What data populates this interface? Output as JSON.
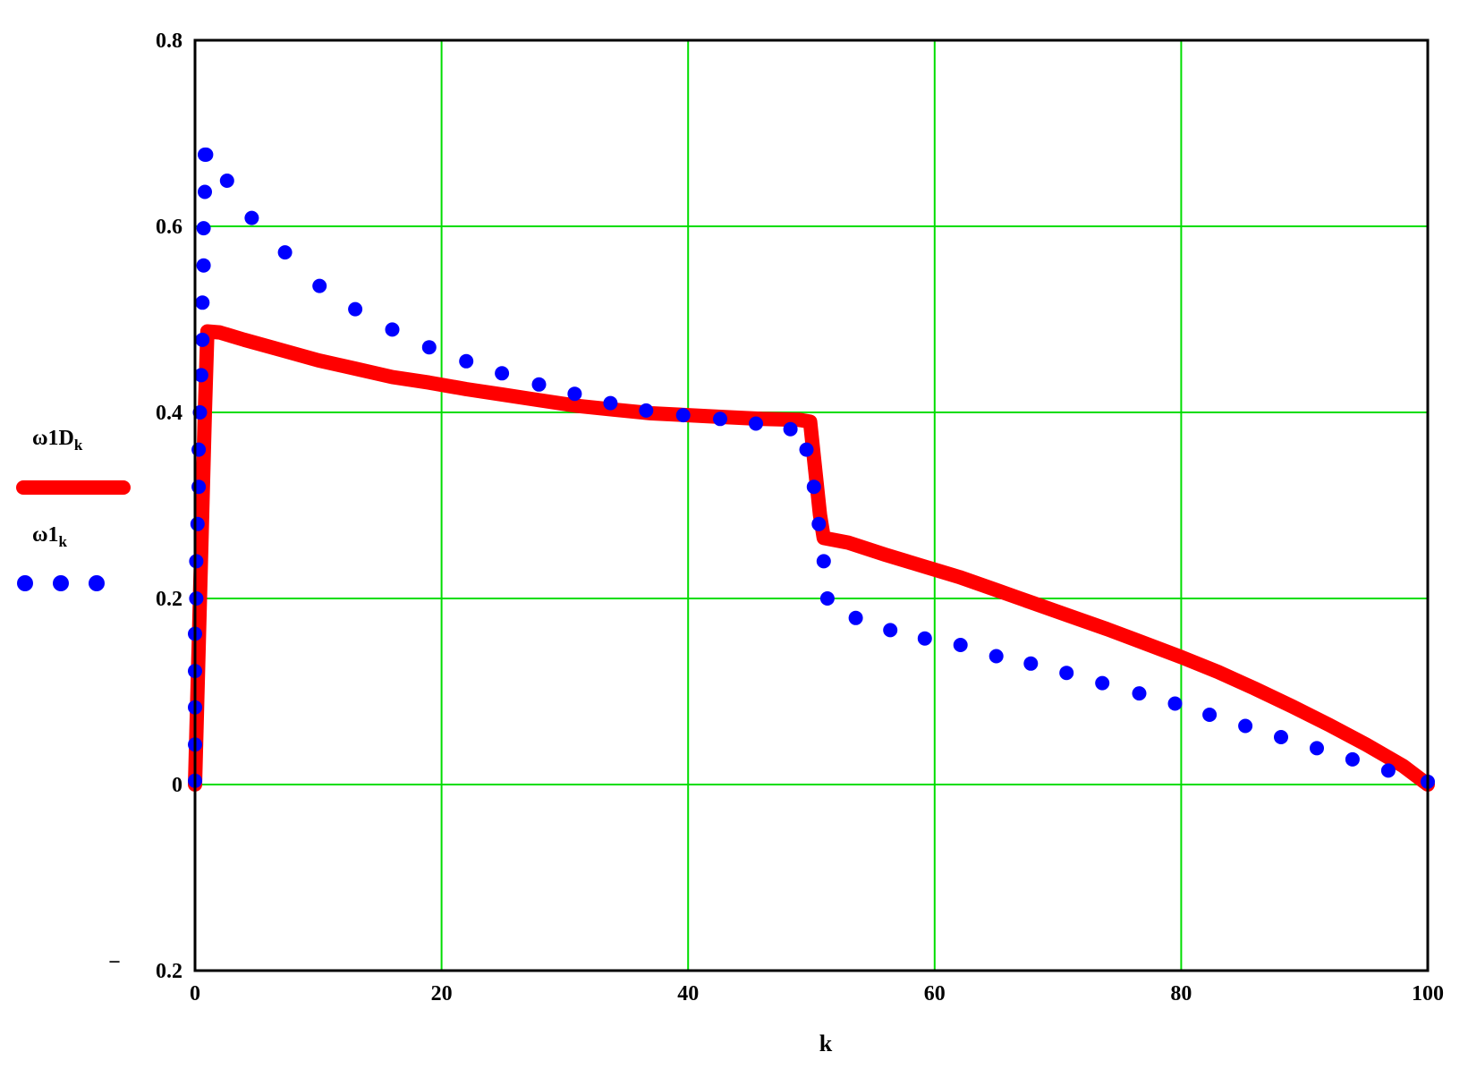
{
  "colors": {
    "grid": "#00dd00",
    "axis": "#000000",
    "series_line": "#ff0000",
    "series_dots": "#0000ff"
  },
  "chart_data": {
    "type": "line",
    "xlabel": "k",
    "xlim": [
      0,
      100
    ],
    "ylim": [
      -0.2,
      0.8
    ],
    "xticks": [
      0,
      20,
      40,
      60,
      80,
      100
    ],
    "yticks": [
      -0.2,
      0,
      0.2,
      0.4,
      0.6,
      0.8
    ],
    "xtick_labels": [
      "0",
      "20",
      "40",
      "60",
      "80",
      "100"
    ],
    "ytick_labels": [
      "0.2",
      "0",
      "0.2",
      "0.4",
      "0.6",
      "0.8"
    ],
    "ytick_minus_mark": "−",
    "grid": true,
    "legend_position": "left",
    "series": [
      {
        "name": "ω1D",
        "name_subscript": "k",
        "style": "solid-thick",
        "color": "#ff0000",
        "x": [
          0,
          0.4,
          0.8,
          1.0,
          2,
          4,
          7,
          10,
          13,
          16,
          19,
          22,
          25,
          28,
          31,
          34,
          37,
          40,
          43,
          46,
          49,
          49.9,
          50.3,
          50.7,
          51,
          53,
          56,
          59,
          62,
          65,
          68,
          71,
          74,
          77,
          80,
          83,
          86,
          89,
          92,
          95,
          98,
          100
        ],
        "y": [
          0,
          0.2,
          0.4,
          0.487,
          0.486,
          0.478,
          0.467,
          0.456,
          0.447,
          0.438,
          0.432,
          0.425,
          0.419,
          0.413,
          0.407,
          0.403,
          0.399,
          0.397,
          0.395,
          0.393,
          0.392,
          0.39,
          0.34,
          0.29,
          0.265,
          0.26,
          0.247,
          0.235,
          0.223,
          0.209,
          0.195,
          0.181,
          0.167,
          0.152,
          0.137,
          0.121,
          0.103,
          0.084,
          0.064,
          0.043,
          0.02,
          0.0
        ]
      },
      {
        "name": "ω1",
        "name_subscript": "k",
        "style": "dots",
        "color": "#0000ff",
        "x": [
          0,
          0,
          0,
          0,
          0,
          0.1,
          0.1,
          0.2,
          0.3,
          0.3,
          0.4,
          0.5,
          0.6,
          0.6,
          0.7,
          0.7,
          0.8,
          0.8,
          0.9,
          2.6,
          4.6,
          7.3,
          10.1,
          13.0,
          16.0,
          19.0,
          22.0,
          24.9,
          27.9,
          30.8,
          33.7,
          36.6,
          39.6,
          42.6,
          45.5,
          48.3,
          49.6,
          50.2,
          50.6,
          51.0,
          51.3,
          53.6,
          56.4,
          59.2,
          62.1,
          65.0,
          67.8,
          70.7,
          73.6,
          76.6,
          79.5,
          82.3,
          85.2,
          88.1,
          91.0,
          93.9,
          96.8,
          100
        ],
        "y": [
          0.004,
          0.043,
          0.083,
          0.122,
          0.162,
          0.2,
          0.24,
          0.28,
          0.32,
          0.36,
          0.4,
          0.44,
          0.478,
          0.518,
          0.558,
          0.598,
          0.637,
          0.677,
          0.677,
          0.649,
          0.609,
          0.572,
          0.536,
          0.511,
          0.489,
          0.47,
          0.455,
          0.442,
          0.43,
          0.42,
          0.41,
          0.402,
          0.397,
          0.393,
          0.388,
          0.382,
          0.36,
          0.32,
          0.28,
          0.24,
          0.2,
          0.179,
          0.166,
          0.157,
          0.15,
          0.138,
          0.13,
          0.12,
          0.109,
          0.098,
          0.087,
          0.075,
          0.063,
          0.051,
          0.039,
          0.027,
          0.015,
          0.003
        ]
      }
    ]
  }
}
